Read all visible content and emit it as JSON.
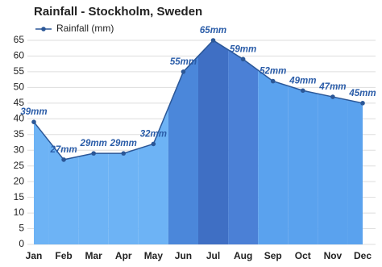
{
  "chart_data": {
    "type": "area",
    "title": "Rainfall - Stockholm, Sweden",
    "categories": [
      "Jan",
      "Feb",
      "Mar",
      "Apr",
      "May",
      "Jun",
      "Jul",
      "Aug",
      "Sep",
      "Oct",
      "Nov",
      "Dec"
    ],
    "series": [
      {
        "name": "Rainfall (mm)",
        "color": "#2b5797",
        "values": [
          39,
          27,
          29,
          29,
          32,
          55,
          65,
          59,
          52,
          49,
          47,
          45
        ],
        "value_labels": [
          "39mm",
          "27mm",
          "29mm",
          "29mm",
          "32mm",
          "55mm",
          "65mm",
          "59mm",
          "52mm",
          "49mm",
          "47mm",
          "45mm"
        ]
      }
    ],
    "colors": [
      "#6db3f5",
      "#6db3f5",
      "#6db3f5",
      "#6db3f5",
      "#6db3f5",
      "#4b87da",
      "#3f6fc4",
      "#4b80d6",
      "#5aa2ee",
      "#5aa2ee",
      "#5aa2ee",
      "#5aa2ee"
    ],
    "ylim": [
      0,
      65
    ],
    "yticks": [
      0,
      5,
      10,
      15,
      20,
      25,
      30,
      35,
      40,
      45,
      50,
      55,
      60,
      65
    ],
    "grid": true,
    "legend": "top-left"
  }
}
